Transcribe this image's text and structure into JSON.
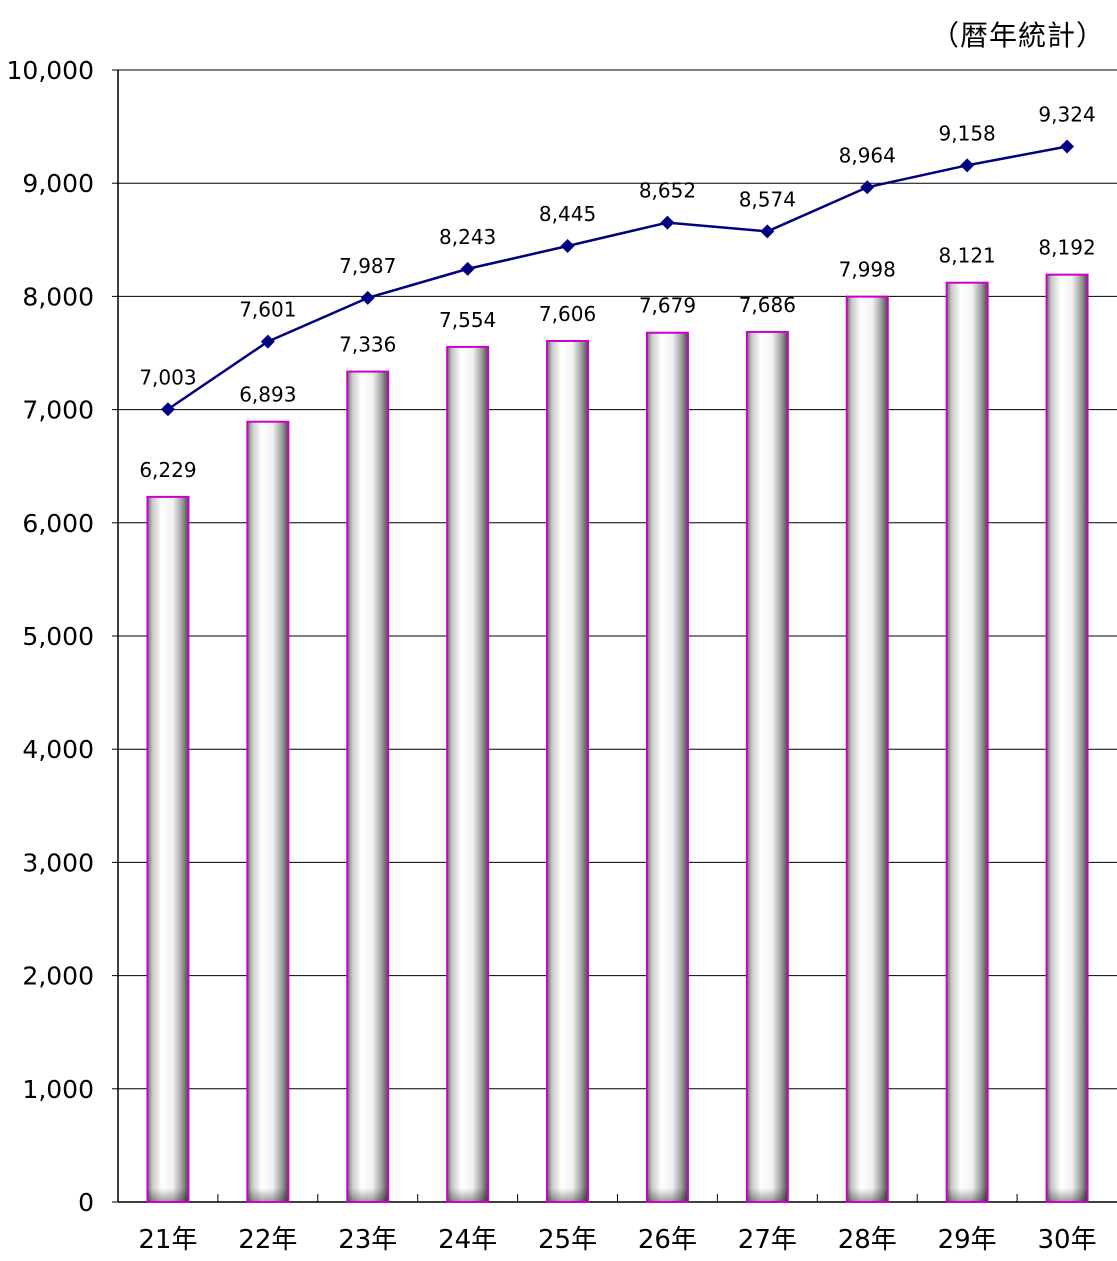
{
  "note": "（暦年統計）",
  "chart_data": {
    "type": "bar",
    "categories": [
      "21年",
      "22年",
      "23年",
      "24年",
      "25年",
      "26年",
      "27年",
      "28年",
      "29年",
      "30年"
    ],
    "series": [
      {
        "type": "bar",
        "values": [
          6229,
          6893,
          7336,
          7554,
          7606,
          7679,
          7686,
          7998,
          8121,
          8192
        ],
        "labels": [
          "6,229",
          "6,893",
          "7,336",
          "7,554",
          "7,606",
          "7,679",
          "7,686",
          "7,998",
          "8,121",
          "8,192"
        ],
        "color": "#cc00cc"
      },
      {
        "type": "line",
        "values": [
          7003,
          7601,
          7987,
          8243,
          8445,
          8652,
          8574,
          8964,
          9158,
          9324
        ],
        "labels": [
          "7,003",
          "7,601",
          "7,987",
          "8,243",
          "8,445",
          "8,652",
          "8,574",
          "8,964",
          "9,158",
          "9,324"
        ],
        "color": "#000080"
      }
    ],
    "ylim": [
      0,
      10000
    ],
    "yticks": [
      0,
      1000,
      2000,
      3000,
      4000,
      5000,
      6000,
      7000,
      8000,
      9000,
      10000
    ],
    "ytick_labels": [
      "0",
      "1,000",
      "2,000",
      "3,000",
      "4,000",
      "5,000",
      "6,000",
      "7,000",
      "8,000",
      "9,000",
      "10,000"
    ],
    "grid": true,
    "legend": "none"
  }
}
